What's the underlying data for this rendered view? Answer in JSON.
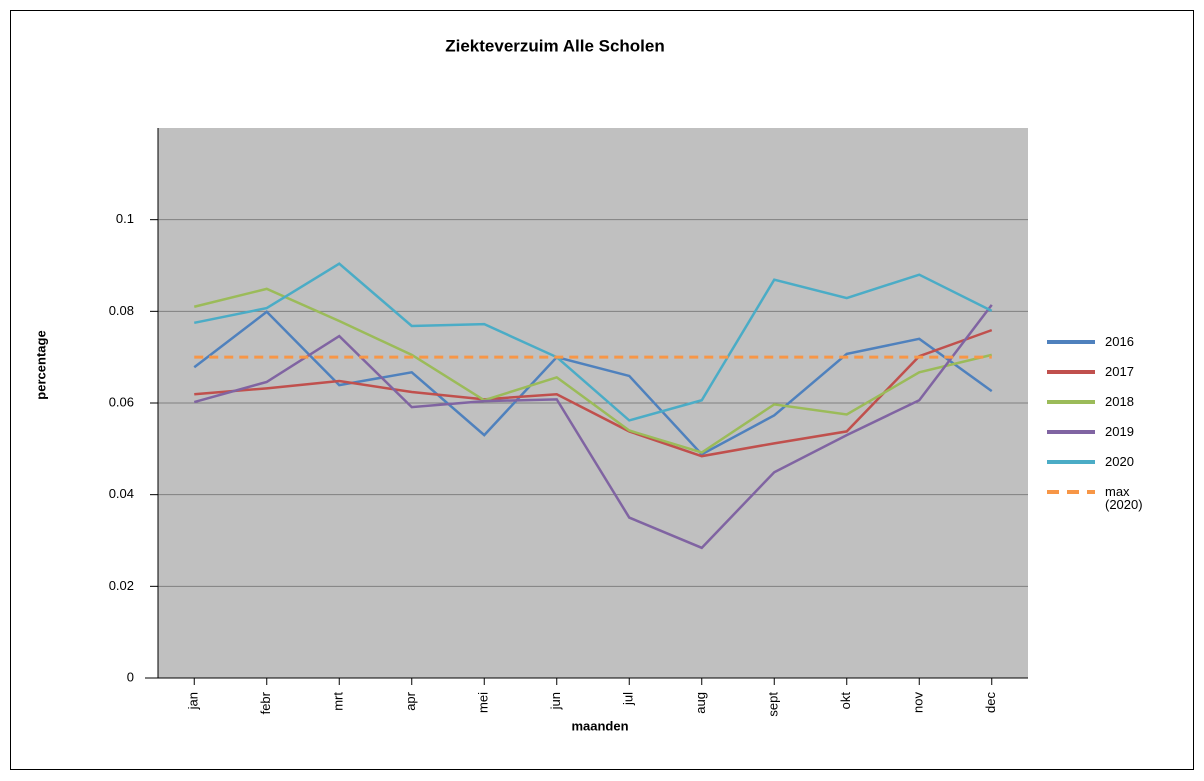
{
  "chart_data": {
    "type": "line",
    "title": "Ziekteverzuim Alle Scholen",
    "x_label": "maanden",
    "y_label": "percentage",
    "categories": [
      "jan",
      "febr",
      "mrt",
      "apr",
      "mei",
      "jun",
      "jul",
      "aug",
      "sept",
      "okt",
      "nov",
      "dec"
    ],
    "ylim": [
      0,
      0.12
    ],
    "yticks": [
      0,
      0.02,
      0.04,
      0.06,
      0.08,
      0.1
    ],
    "grid": true,
    "legend": "right",
    "series": [
      {
        "name": "2016",
        "color": "#4f81bd",
        "values": [
          0.0678,
          0.0799,
          0.0639,
          0.0667,
          0.053,
          0.07,
          0.0659,
          0.0488,
          0.0573,
          0.0707,
          0.074,
          0.0626
        ]
      },
      {
        "name": "2017",
        "color": "#c0504d",
        "values": [
          0.0619,
          0.0632,
          0.0648,
          0.0624,
          0.0608,
          0.0619,
          0.0538,
          0.0484,
          0.0512,
          0.0538,
          0.0702,
          0.0759
        ]
      },
      {
        "name": "2018",
        "color": "#9bbb59",
        "values": [
          0.081,
          0.0849,
          0.0779,
          0.0705,
          0.0606,
          0.0656,
          0.054,
          0.0492,
          0.0597,
          0.0575,
          0.0667,
          0.0705
        ]
      },
      {
        "name": "2019",
        "color": "#8064a2",
        "values": [
          0.0602,
          0.0646,
          0.0746,
          0.0591,
          0.0604,
          0.0608,
          0.035,
          0.0284,
          0.0449,
          0.053,
          0.0606,
          0.0814
        ]
      },
      {
        "name": "2020",
        "color": "#4bacc6",
        "values": [
          0.0775,
          0.0807,
          0.0904,
          0.0768,
          0.0772,
          0.07,
          0.0562,
          0.0606,
          0.0869,
          0.0829,
          0.088,
          0.0801
        ]
      },
      {
        "name": "max (2020)",
        "color": "#f79646",
        "dashed": true,
        "values": [
          0.07,
          0.07,
          0.07,
          0.07,
          0.07,
          0.07,
          0.07,
          0.07,
          0.07,
          0.07,
          0.07,
          0.07
        ]
      }
    ]
  }
}
